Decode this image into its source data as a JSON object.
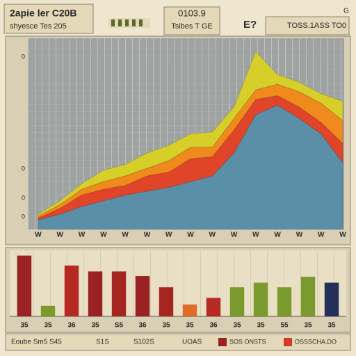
{
  "header": {
    "title": "2apie ler C20B",
    "subtitle": "shyesce Tes 205",
    "center_title": "0103.9",
    "center_subtitle": "Tsibes T GE",
    "badge": "E?",
    "right_label": "TOSS.1ASS TO0",
    "corner": "G"
  },
  "chart_data": [
    {
      "type": "area",
      "categories": [
        "W",
        "W",
        "W",
        "W",
        "W",
        "W",
        "W",
        "W",
        "W",
        "W",
        "W",
        "W",
        "W",
        "W",
        "W"
      ],
      "y_labels": [
        "0",
        "0",
        "0",
        "0"
      ],
      "ylim": [
        0,
        100
      ],
      "series": [
        {
          "color": "#5b8fa8",
          "values": [
            5,
            8,
            12,
            15,
            18,
            20,
            22,
            25,
            28,
            40,
            60,
            65,
            58,
            50,
            35
          ]
        },
        {
          "color": "#e0452a",
          "values": [
            1,
            3,
            6,
            6,
            5,
            8,
            8,
            12,
            10,
            12,
            8,
            5,
            6,
            6,
            10
          ]
        },
        {
          "color": "#f08a1c",
          "values": [
            1,
            2,
            3,
            4,
            5,
            4,
            6,
            6,
            5,
            6,
            5,
            6,
            8,
            10,
            12
          ]
        },
        {
          "color": "#d6cf2a",
          "values": [
            1,
            2,
            3,
            6,
            6,
            8,
            8,
            7,
            8,
            6,
            20,
            5,
            5,
            5,
            10
          ]
        }
      ]
    },
    {
      "type": "bar",
      "categories": [
        "35",
        "35",
        "36",
        "35",
        "S5",
        "36",
        "35",
        "35",
        "36",
        "35",
        "35",
        "55",
        "35",
        "35"
      ],
      "ylim": [
        0,
        100
      ],
      "values": [
        92,
        16,
        77,
        68,
        68,
        61,
        44,
        18,
        28,
        44,
        51,
        44,
        60,
        51
      ],
      "colors": [
        "#9b2222",
        "#7a9a2e",
        "#b52a22",
        "#9b2222",
        "#a52520",
        "#9b2222",
        "#a52520",
        "#e06a2a",
        "#b52a22",
        "#7a9a2e",
        "#7a9a2e",
        "#7a9a2e",
        "#7a9a2e",
        "#22305a"
      ],
      "legend": [
        {
          "label": "SOS ONSTS",
          "color": "#9b2222"
        },
        {
          "label": "OSSSCHA.DO",
          "color": "#d23a2a"
        }
      ],
      "footer": [
        "Eoube Sm5 S45",
        "S1S",
        "S102S",
        "UOAS"
      ]
    }
  ]
}
